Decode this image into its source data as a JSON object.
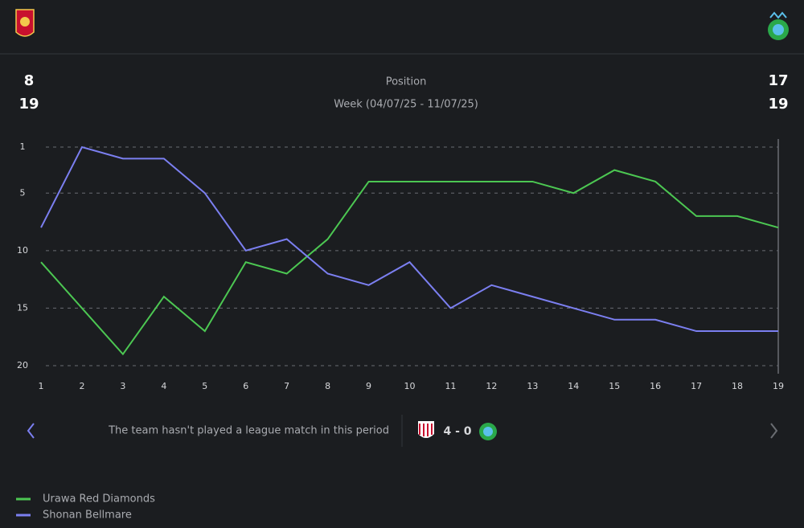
{
  "header": {
    "left_position": 8,
    "left_week": 19,
    "right_position": 17,
    "right_week": 19,
    "title": "Position",
    "subtitle": "Week (04/07/25 - 11/07/25)"
  },
  "chart_data": {
    "type": "line",
    "x": [
      1,
      2,
      3,
      4,
      5,
      6,
      7,
      8,
      9,
      10,
      11,
      12,
      13,
      14,
      15,
      16,
      17,
      18,
      19
    ],
    "xlim": [
      1,
      19
    ],
    "xticks": [
      1,
      2,
      3,
      4,
      5,
      6,
      7,
      8,
      9,
      10,
      11,
      12,
      13,
      14,
      15,
      16,
      17,
      18,
      19
    ],
    "ylim": [
      1,
      20
    ],
    "yticks": [
      1,
      5,
      10,
      15,
      20
    ],
    "y_inverted": true,
    "grid": true,
    "series": [
      {
        "name": "Urawa Red Diamonds",
        "color": "#4cc752",
        "values": [
          11,
          15,
          19,
          14,
          17,
          11,
          12,
          9,
          4,
          4,
          4,
          4,
          4,
          5,
          3,
          4,
          7,
          7,
          8
        ]
      },
      {
        "name": "Shonan Bellmare",
        "color": "#7b7ff0",
        "values": [
          8,
          1,
          2,
          2,
          5,
          10,
          9,
          12,
          13,
          11,
          15,
          13,
          14,
          15,
          16,
          16,
          17,
          17,
          17
        ]
      }
    ]
  },
  "match": {
    "left_message": "The team hasn't played a league match in this period",
    "score": "4 - 0"
  }
}
